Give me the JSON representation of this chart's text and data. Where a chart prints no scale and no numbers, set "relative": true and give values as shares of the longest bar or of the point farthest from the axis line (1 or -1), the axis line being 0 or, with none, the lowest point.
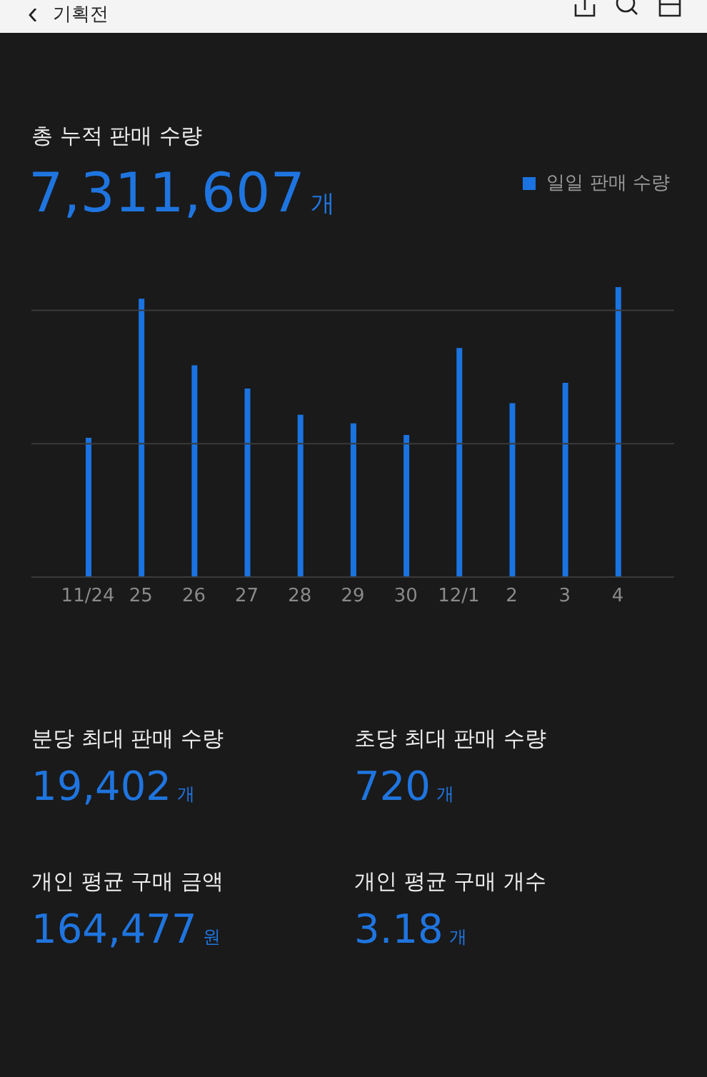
{
  "chart_data": {
    "type": "bar",
    "title": "총 누적 판매 수량",
    "subtitle": "7,311,607개",
    "categories": [
      "11/24",
      "25",
      "26",
      "27",
      "28",
      "29",
      "30",
      "12/1",
      "2",
      "3",
      "4"
    ],
    "series": [
      {
        "name": "일일 판매 수량",
        "color": "#1a73e0",
        "values": [
          0.48,
          0.96,
          0.73,
          0.65,
          0.56,
          0.53,
          0.49,
          0.79,
          0.6,
          0.67,
          1
        ]
      }
    ],
    "relative": true,
    "ref_lines": [
      {
        "axis": "y",
        "value": 0.46,
        "color": "#3a3a3a"
      },
      {
        "axis": "y",
        "value": 0.92,
        "color": "#3a3a3a"
      }
    ],
    "legend": "top right",
    "annotations": [
      "기획전",
      "분당 최대 판매 수량",
      "19,402개",
      "초당 최대 판매 수량",
      "720개",
      "개인 평균 구매 금액",
      "164,477원",
      "개인 평균 구매 개수",
      "3.18개"
    ]
  }
}
